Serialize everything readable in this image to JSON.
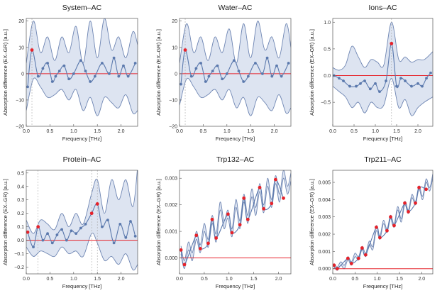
{
  "colors": {
    "band_fill": "#dde4f1",
    "band_edge": "#6f86b3",
    "curve": "#5b79ad",
    "point": "#5b79ad",
    "highlight": "#e6222a",
    "zero_line": "#e6222a",
    "guide": "#a8a8a8"
  },
  "chart_data": [
    {
      "type": "line",
      "title": "System–AC",
      "xlabel": "Frequency [THz]",
      "ylabel": "Absorption difference (EX–GR) [a.u.]",
      "xlim": [
        0,
        2.35
      ],
      "ylim": [
        -20,
        21
      ],
      "xticks": [
        "0.0",
        "0.5",
        "1.0",
        "1.5",
        "2.0"
      ],
      "xtick_values": [
        0,
        0.5,
        1.0,
        1.5,
        2.0
      ],
      "yticks": [
        "−20",
        "−10",
        "0",
        "10",
        "20"
      ],
      "ytick_values": [
        -20,
        -10,
        0,
        10,
        20
      ],
      "band": {
        "x": [
          0,
          0.15,
          0.3,
          0.45,
          0.6,
          0.75,
          0.9,
          1.05,
          1.2,
          1.35,
          1.5,
          1.65,
          1.8,
          1.95,
          2.1,
          2.25,
          2.35
        ],
        "upper": [
          4,
          20,
          8,
          14,
          5,
          14,
          8,
          18,
          4,
          20,
          6,
          21,
          9,
          14,
          6,
          16,
          11
        ],
        "lower": [
          -14,
          -2,
          -5,
          -9,
          -8,
          -6,
          -10,
          -6,
          -14,
          -9,
          -16,
          -9,
          -11,
          -13,
          -8,
          -15,
          -14
        ]
      },
      "points": {
        "x": [
          0.03,
          0.12,
          0.25,
          0.35,
          0.45,
          0.55,
          0.62,
          0.7,
          0.8,
          0.9,
          1.0,
          1.15,
          1.25,
          1.35,
          1.45,
          1.6,
          1.75,
          1.85,
          1.95,
          2.05,
          2.15,
          2.3
        ],
        "y": [
          -5,
          9,
          -1,
          2,
          4,
          -3,
          -1,
          1,
          3,
          -2,
          0,
          5,
          1,
          -3,
          -1,
          4,
          0,
          6,
          -1,
          3,
          -1,
          4
        ]
      },
      "highlighted": [
        {
          "x": 0.12,
          "y": 9
        }
      ],
      "guides": [
        0.12
      ]
    },
    {
      "type": "line",
      "title": "Water–AC",
      "xlabel": "Frequency [THz]",
      "ylabel": "Absorption difference (EX–GR) [a.u.]",
      "xlim": [
        0,
        2.35
      ],
      "ylim": [
        -20,
        21
      ],
      "xticks": [
        "0.0",
        "0.5",
        "1.0",
        "1.5",
        "2.0"
      ],
      "xtick_values": [
        0,
        0.5,
        1.0,
        1.5,
        2.0
      ],
      "yticks": [
        "−20",
        "−10",
        "0",
        "10",
        "20"
      ],
      "ytick_values": [
        -20,
        -10,
        0,
        10,
        20
      ],
      "band": {
        "x": [
          0,
          0.15,
          0.3,
          0.45,
          0.6,
          0.75,
          0.9,
          1.05,
          1.2,
          1.35,
          1.5,
          1.65,
          1.8,
          1.95,
          2.1,
          2.25,
          2.35
        ],
        "upper": [
          4,
          19,
          8,
          14,
          5,
          14,
          8,
          17,
          4,
          19,
          6,
          20,
          9,
          14,
          6,
          19,
          10
        ],
        "lower": [
          -12,
          -2,
          -5,
          -9,
          -8,
          -6,
          -10,
          -6,
          -13,
          -9,
          -16,
          -9,
          -11,
          -14,
          -8,
          -15,
          -13
        ]
      },
      "points": {
        "x": [
          0.03,
          0.12,
          0.25,
          0.35,
          0.45,
          0.55,
          0.62,
          0.7,
          0.8,
          0.9,
          1.0,
          1.15,
          1.25,
          1.35,
          1.45,
          1.6,
          1.75,
          1.85,
          1.95,
          2.05,
          2.15,
          2.3
        ],
        "y": [
          -4,
          9,
          -1,
          2,
          4,
          -3,
          -1,
          1,
          3,
          -2,
          0,
          5,
          1,
          -3,
          -1,
          4,
          0,
          6,
          -1,
          3,
          -1,
          4
        ]
      },
      "highlighted": [
        {
          "x": 0.12,
          "y": 9
        }
      ],
      "guides": [
        0.12
      ]
    },
    {
      "type": "line",
      "title": "Ions–AC",
      "xlabel": "Frequency [THz]",
      "ylabel": "Absorption difference (EX–GR) [a.u.]",
      "xlim": [
        0,
        2.35
      ],
      "ylim": [
        -0.95,
        1.07
      ],
      "xticks": [
        "0.0",
        "0.5",
        "1.0",
        "1.5",
        "2.0"
      ],
      "xtick_values": [
        0,
        0.5,
        1.0,
        1.5,
        2.0
      ],
      "yticks": [
        "−0.5",
        "0.0",
        "0.5",
        "1.0"
      ],
      "ytick_values": [
        -0.5,
        0,
        0.5,
        1.0
      ],
      "band": {
        "x": [
          0,
          0.15,
          0.3,
          0.45,
          0.6,
          0.75,
          0.9,
          1.05,
          1.2,
          1.38,
          1.55,
          1.7,
          1.85,
          2.0,
          2.15,
          2.35
        ],
        "upper": [
          0.15,
          0.1,
          0.2,
          0.55,
          0.35,
          0.15,
          0.3,
          0.25,
          0.2,
          1.0,
          0.3,
          0.35,
          0.25,
          0.3,
          0.3,
          0.45
        ],
        "lower": [
          -0.2,
          -0.3,
          -0.4,
          -0.6,
          -0.5,
          -0.7,
          -0.5,
          -0.6,
          -0.55,
          -0.05,
          -0.6,
          -0.45,
          -0.75,
          -0.6,
          -0.5,
          -0.4
        ]
      },
      "points": {
        "x": [
          0.03,
          0.15,
          0.25,
          0.4,
          0.55,
          0.65,
          0.75,
          0.88,
          1.0,
          1.1,
          1.25,
          1.38,
          1.5,
          1.6,
          1.7,
          1.85,
          2.0,
          2.1,
          2.2,
          2.3
        ],
        "y": [
          0.0,
          -0.05,
          -0.1,
          -0.2,
          -0.2,
          -0.15,
          -0.1,
          -0.25,
          -0.15,
          -0.3,
          -0.1,
          0.6,
          -0.2,
          -0.05,
          -0.1,
          -0.2,
          -0.15,
          -0.2,
          -0.05,
          0.05
        ]
      },
      "highlighted": [
        {
          "x": 1.38,
          "y": 0.6
        }
      ],
      "guides": [
        1.38
      ]
    },
    {
      "type": "line",
      "title": "Protein–AC",
      "xlabel": "Frequency [THz]",
      "ylabel": "Absorption difference (EX–GR) [a.u.]",
      "xlim": [
        0,
        2.35
      ],
      "ylim": [
        -0.25,
        0.52
      ],
      "xticks": [
        "0.0",
        "0.5",
        "1.0",
        "1.5",
        "2.0"
      ],
      "xtick_values": [
        0,
        0.5,
        1.0,
        1.5,
        2.0
      ],
      "yticks": [
        "−0.2",
        "−0.1",
        "0.0",
        "0.1",
        "0.2",
        "0.3",
        "0.4",
        "0.5"
      ],
      "ytick_values": [
        -0.2,
        -0.1,
        0,
        0.1,
        0.2,
        0.3,
        0.4,
        0.5
      ],
      "band": {
        "x": [
          0,
          0.15,
          0.3,
          0.45,
          0.6,
          0.75,
          0.9,
          1.05,
          1.2,
          1.38,
          1.5,
          1.65,
          1.8,
          1.95,
          2.1,
          2.25,
          2.35
        ],
        "upper": [
          0.15,
          0.05,
          0.15,
          0.12,
          0.08,
          0.2,
          0.1,
          0.2,
          0.12,
          0.35,
          0.45,
          0.2,
          0.45,
          0.3,
          0.45,
          0.25,
          0.55
        ],
        "lower": [
          -0.05,
          -0.12,
          -0.08,
          -0.1,
          -0.12,
          -0.05,
          -0.1,
          -0.08,
          -0.12,
          0.05,
          -0.02,
          -0.15,
          -0.12,
          -0.18,
          -0.1,
          -0.22,
          -0.18
        ]
      },
      "points": {
        "x": [
          0.03,
          0.15,
          0.25,
          0.35,
          0.45,
          0.55,
          0.65,
          0.75,
          0.85,
          0.95,
          1.05,
          1.15,
          1.25,
          1.38,
          1.5,
          1.6,
          1.72,
          1.85,
          1.98,
          2.1,
          2.2,
          2.3
        ],
        "y": [
          0.06,
          -0.05,
          0.1,
          0.0,
          0.05,
          -0.02,
          0.04,
          0.08,
          0.0,
          0.07,
          0.05,
          0.09,
          0.12,
          0.2,
          0.27,
          0.1,
          0.15,
          -0.02,
          0.12,
          0.02,
          0.14,
          0.03
        ]
      },
      "highlighted": [
        {
          "x": 0.03,
          "y": 0.06
        },
        {
          "x": 0.25,
          "y": 0.1
        },
        {
          "x": 1.38,
          "y": 0.2
        },
        {
          "x": 1.5,
          "y": 0.27
        }
      ],
      "guides": [
        0.25,
        1.38,
        1.5
      ]
    },
    {
      "type": "line",
      "title": "Trp132–AC",
      "xlabel": "Frequency [THz]",
      "ylabel": "Absorption difference (EX–GR) [a.u.]",
      "xlim": [
        0,
        2.25
      ],
      "ylim": [
        -0.0006,
        0.0033
      ],
      "xticks": [
        "0.0",
        "0.5",
        "1.0",
        "1.5",
        "2.0"
      ],
      "xtick_values": [
        0,
        0.5,
        1.0,
        1.5,
        2.0
      ],
      "yticks": [
        "0.000",
        "0.001",
        "0.002",
        "0.003"
      ],
      "ytick_values": [
        0,
        0.001,
        0.002,
        0.003
      ],
      "band": {
        "x": [
          0.03,
          0.1,
          0.18,
          0.26,
          0.34,
          0.42,
          0.5,
          0.58,
          0.66,
          0.74,
          0.82,
          0.9,
          0.98,
          1.06,
          1.14,
          1.22,
          1.3,
          1.38,
          1.46,
          1.54,
          1.62,
          1.7,
          1.78,
          1.86,
          1.94,
          2.02,
          2.1,
          2.18,
          2.25
        ],
        "upper": [
          0.00045,
          -0.0001,
          0.0006,
          0.0002,
          0.001,
          0.0005,
          0.0013,
          0.0007,
          0.0016,
          0.0009,
          0.0021,
          0.0014,
          0.0018,
          0.0011,
          0.0022,
          0.0014,
          0.0024,
          0.0016,
          0.0026,
          0.0019,
          0.0028,
          0.002,
          0.003,
          0.0022,
          0.0031,
          0.0024,
          0.0033,
          0.0027,
          0.0032
        ],
        "lower": [
          0.00015,
          -0.0004,
          0.0003,
          -0.0001,
          0.0007,
          0.0002,
          0.001,
          0.0004,
          0.0013,
          0.0006,
          0.0018,
          0.0011,
          0.0015,
          0.0008,
          0.0019,
          0.0011,
          0.0021,
          0.0013,
          0.0023,
          0.0016,
          0.0025,
          0.0017,
          0.0027,
          0.0019,
          0.0028,
          0.0021,
          0.003,
          0.0024,
          0.0029
        ]
      },
      "points": {
        "x": [
          0.03,
          0.1,
          0.34,
          0.42,
          0.58,
          0.66,
          0.74,
          0.98,
          1.06,
          1.22,
          1.3,
          1.38,
          1.62,
          1.7,
          1.86,
          1.94,
          2.1
        ],
        "y": [
          0.0003,
          -0.00025,
          0.00085,
          0.00035,
          0.00055,
          0.00145,
          0.00075,
          0.00165,
          0.00095,
          0.00125,
          0.00225,
          0.00145,
          0.00265,
          0.00185,
          0.00205,
          0.00295,
          0.00225
        ]
      },
      "highlighted": [
        {
          "x": 0.03,
          "y": 0.0003
        },
        {
          "x": 0.1,
          "y": -0.00025
        },
        {
          "x": 0.34,
          "y": 0.00085
        },
        {
          "x": 0.42,
          "y": 0.00035
        },
        {
          "x": 0.58,
          "y": 0.00055
        },
        {
          "x": 0.66,
          "y": 0.00145
        },
        {
          "x": 0.74,
          "y": 0.00075
        },
        {
          "x": 0.98,
          "y": 0.00165
        },
        {
          "x": 1.06,
          "y": 0.00095
        },
        {
          "x": 1.22,
          "y": 0.00125
        },
        {
          "x": 1.3,
          "y": 0.00225
        },
        {
          "x": 1.38,
          "y": 0.00145
        },
        {
          "x": 1.62,
          "y": 0.00265
        },
        {
          "x": 1.7,
          "y": 0.00185
        },
        {
          "x": 1.86,
          "y": 0.00205
        },
        {
          "x": 1.94,
          "y": 0.00295
        },
        {
          "x": 2.1,
          "y": 0.00225
        }
      ],
      "guides": []
    },
    {
      "type": "line",
      "title": "Trp211–AC",
      "xlabel": "Frequency [THz]",
      "ylabel": "Absorption difference (EX–GR) [a.u.]",
      "xlim": [
        0,
        2.25
      ],
      "ylim": [
        -0.0003,
        0.0057
      ],
      "xticks": [
        "0.0",
        "0.5",
        "1.0",
        "1.5",
        "2.0"
      ],
      "xtick_values": [
        0,
        0.5,
        1.0,
        1.5,
        2.0
      ],
      "yticks": [
        "0.000",
        "0.001",
        "0.002",
        "0.003",
        "0.004",
        "0.005"
      ],
      "ytick_values": [
        0,
        0.001,
        0.002,
        0.003,
        0.004,
        0.005
      ],
      "band": {
        "x": [
          0.03,
          0.1,
          0.18,
          0.26,
          0.34,
          0.42,
          0.5,
          0.58,
          0.66,
          0.74,
          0.82,
          0.9,
          0.98,
          1.06,
          1.14,
          1.22,
          1.3,
          1.38,
          1.46,
          1.54,
          1.62,
          1.7,
          1.78,
          1.86,
          1.94,
          2.02,
          2.1,
          2.18,
          2.25
        ],
        "upper": [
          0.0003,
          0.0001,
          0.0004,
          0.0002,
          0.0007,
          0.0004,
          0.0009,
          0.0007,
          0.0013,
          0.0009,
          0.0016,
          0.0013,
          0.0025,
          0.0019,
          0.0028,
          0.0023,
          0.0031,
          0.0026,
          0.0036,
          0.0029,
          0.0039,
          0.0034,
          0.0043,
          0.0039,
          0.0048,
          0.0042,
          0.0052,
          0.0047,
          0.0055
        ],
        "lower": [
          0.0001,
          -0.0001,
          0.0002,
          0.0,
          0.0005,
          0.0002,
          0.0007,
          0.0005,
          0.0011,
          0.0007,
          0.0014,
          0.0011,
          0.0022,
          0.0017,
          0.0026,
          0.0021,
          0.0029,
          0.0024,
          0.0034,
          0.0027,
          0.0037,
          0.0032,
          0.0041,
          0.0037,
          0.0046,
          0.004,
          0.005,
          0.0045,
          0.0053
        ]
      },
      "points": {
        "x": [
          0.03,
          0.1,
          0.34,
          0.42,
          0.58,
          0.66,
          0.74,
          0.98,
          1.06,
          1.22,
          1.3,
          1.38,
          1.62,
          1.7,
          1.86,
          1.94,
          2.1
        ],
        "y": [
          0.0002,
          0.0,
          0.0006,
          0.0003,
          0.0006,
          0.0012,
          0.0008,
          0.0024,
          0.0018,
          0.0022,
          0.003,
          0.0025,
          0.0038,
          0.0033,
          0.0038,
          0.0047,
          0.0046
        ]
      },
      "highlighted": [
        {
          "x": 0.03,
          "y": 0.0002
        },
        {
          "x": 0.1,
          "y": 0.0
        },
        {
          "x": 0.34,
          "y": 0.0006
        },
        {
          "x": 0.42,
          "y": 0.0003
        },
        {
          "x": 0.58,
          "y": 0.0006
        },
        {
          "x": 0.66,
          "y": 0.0012
        },
        {
          "x": 0.74,
          "y": 0.0008
        },
        {
          "x": 0.98,
          "y": 0.0024
        },
        {
          "x": 1.06,
          "y": 0.0018
        },
        {
          "x": 1.22,
          "y": 0.0022
        },
        {
          "x": 1.3,
          "y": 0.003
        },
        {
          "x": 1.38,
          "y": 0.0025
        },
        {
          "x": 1.62,
          "y": 0.0038
        },
        {
          "x": 1.7,
          "y": 0.0033
        },
        {
          "x": 1.86,
          "y": 0.0038
        },
        {
          "x": 1.94,
          "y": 0.0047
        },
        {
          "x": 2.1,
          "y": 0.0046
        }
      ],
      "guides": []
    }
  ]
}
